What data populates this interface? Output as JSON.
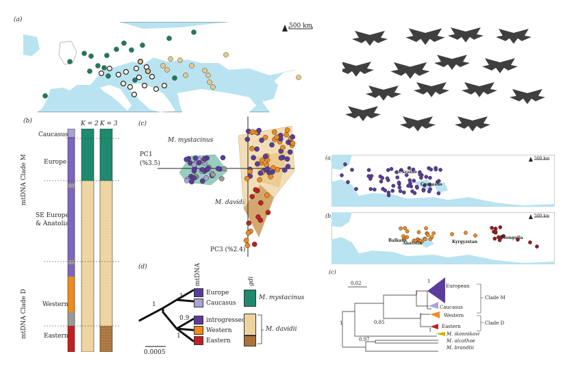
{
  "panel_a": {
    "label": "(a)",
    "scalebar": "500 km",
    "points": [
      {
        "c": "#1e7a5e",
        "x": 283,
        "y": 47
      },
      {
        "c": "#1e7a5e",
        "x": 247,
        "y": 56
      },
      {
        "c": "#1e7a5e",
        "x": 181,
        "y": 63
      },
      {
        "c": "#1e7a5e",
        "x": 208,
        "y": 66
      },
      {
        "c": "#1e7a5e",
        "x": 170,
        "y": 72
      },
      {
        "c": "#1e7a5e",
        "x": 192,
        "y": 73
      },
      {
        "c": "#1e7a5e",
        "x": 123,
        "y": 78
      },
      {
        "c": "#1e7a5e",
        "x": 133,
        "y": 82
      },
      {
        "c": "#1e7a5e",
        "x": 156,
        "y": 81
      },
      {
        "c": "#1e7a5e",
        "x": 102,
        "y": 90
      },
      {
        "c": "#1e7a5e",
        "x": 143,
        "y": 96
      },
      {
        "c": "#1e7a5e",
        "x": 152,
        "y": 99
      },
      {
        "c": "#1e7a5e",
        "x": 131,
        "y": 104
      },
      {
        "c": "#1e7a5e",
        "x": 197,
        "y": 117
      },
      {
        "c": "#1e7a5e",
        "x": 66,
        "y": 140
      },
      {
        "c": "#1e7a5e",
        "x": 255,
        "y": 114
      },
      {
        "c": "#1e7a5e",
        "x": 158,
        "y": 111
      },
      {
        "c": "#e8c98a",
        "x": 249,
        "y": 86
      },
      {
        "c": "#e8c98a",
        "x": 263,
        "y": 88
      },
      {
        "c": "#e8c98a",
        "x": 280,
        "y": 96
      },
      {
        "c": "#e8c98a",
        "x": 299,
        "y": 103
      },
      {
        "c": "#e8c98a",
        "x": 304,
        "y": 110
      },
      {
        "c": "#e8c98a",
        "x": 306,
        "y": 120
      },
      {
        "c": "#e8c98a",
        "x": 311,
        "y": 127
      },
      {
        "c": "#e8c98a",
        "x": 330,
        "y": 80
      },
      {
        "c": "#e8c98a",
        "x": 436,
        "y": 113
      },
      {
        "c": "#e8c98a",
        "x": 271,
        "y": 110
      },
      {
        "c": "#e8c98a",
        "x": 244,
        "y": 102
      },
      {
        "c": "#e8c98a",
        "x": 238,
        "y": 96
      },
      {
        "c": "#fff8e6",
        "x": 160,
        "y": 100,
        "o": "#222"
      },
      {
        "c": "#fff8e6",
        "x": 173,
        "y": 109,
        "o": "#222"
      },
      {
        "c": "#fff8e6",
        "x": 184,
        "y": 105,
        "o": "#222"
      },
      {
        "c": "#fff8e6",
        "x": 199,
        "y": 100,
        "o": "#222"
      },
      {
        "c": "#fff8e6",
        "x": 214,
        "y": 98,
        "o": "#222"
      },
      {
        "c": "#fff8e6",
        "x": 203,
        "y": 113,
        "o": "#222"
      },
      {
        "c": "#fff8e6",
        "x": 211,
        "y": 125,
        "o": "#222"
      },
      {
        "c": "#fff8e6",
        "x": 190,
        "y": 127,
        "o": "#222"
      },
      {
        "c": "#fff8e6",
        "x": 222,
        "y": 112,
        "o": "#222"
      },
      {
        "c": "#fff8e6",
        "x": 180,
        "y": 122,
        "o": "#222"
      },
      {
        "c": "#fff8e6",
        "x": 196,
        "y": 138,
        "o": "#222"
      },
      {
        "c": "#fff8e6",
        "x": 240,
        "y": 125,
        "o": "#222"
      },
      {
        "c": "#fff8e6",
        "x": 228,
        "y": 130,
        "o": "#222"
      },
      {
        "c": "#fff8e6",
        "x": 148,
        "y": 107,
        "o": "#222"
      },
      {
        "c": "#e8c98a",
        "x": 205,
        "y": 90,
        "o": "#222"
      },
      {
        "c": "#e8c98a",
        "x": 216,
        "y": 104,
        "o": "#222"
      }
    ]
  },
  "panel_b": {
    "label": "(b)",
    "k2": "K = 2",
    "k3": "K = 3",
    "side_clade_m": "mtDNA Clade M",
    "side_clade_d": "mtDNA Clade D",
    "groups": [
      "Caucasus",
      "Europe",
      "SE Europe",
      "& Anatolia",
      "Western",
      "Eastern"
    ]
  },
  "panel_c": {
    "label": "(c)",
    "pc1": "PC1",
    "pc1_pct": "(%3.5)",
    "pc3": "PC3 (%2.4)",
    "species1": "M. mystacinus",
    "species2": "M. davidii"
  },
  "panel_d": {
    "label": "(d)",
    "mtdna": "mtDNA",
    "gdi": "gdi",
    "support_root": "1",
    "support_m": "1",
    "support_intro": "0.9",
    "support_d": "1",
    "scale": "0.0005",
    "legend": [
      {
        "name": "Europe",
        "color": "#5b3b9b"
      },
      {
        "name": "Caucasus",
        "color": "#a9a3d6"
      },
      {
        "name": "introgressed",
        "color": "#5b3b9b"
      },
      {
        "name": "Western",
        "color": "#f08a1e"
      },
      {
        "name": "Eastern",
        "color": "#c02020"
      }
    ],
    "species1": "M. mystacinus",
    "species2": "M. davidii"
  },
  "right_a": {
    "label": "(a)",
    "scalebar": "500 km",
    "ukraine": "Ukraine",
    "caucasus": "Caucasus"
  },
  "right_b": {
    "label": "(b)",
    "scalebar": "500 km",
    "balkans": "Balkans",
    "anatolia": "Anatolia",
    "kyrgyzstan": "Kyrgyzstan",
    "mongolia": "Mongolia"
  },
  "right_c": {
    "label": "(c)",
    "scale": "0.02",
    "european": "European",
    "caucasus": "Caucasus",
    "western": "Western",
    "eastern": "Eastern",
    "clade_m": "Clade M",
    "clade_d": "Clade D",
    "ikonnikovi": "M. ikonnikovi",
    "alcathoe": "M. alcathoe",
    "brandtii": "M. brandtii",
    "s1a": "1",
    "s1b": "1",
    "s1c": "1",
    "s1d": "1",
    "s085": "0.85",
    "s097": "0.97",
    "s1root": "1"
  }
}
